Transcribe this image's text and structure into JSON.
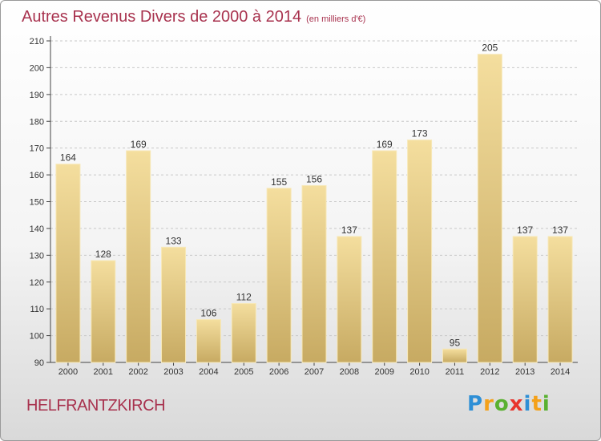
{
  "title": "Autres Revenus Divers de 2000 à 2014",
  "subtitle": "(en milliers d'€)",
  "location": "HELFRANTZKIRCH",
  "logo": {
    "letters": [
      "P",
      "r",
      "o",
      "x",
      "i",
      "t",
      "i"
    ],
    "colors": [
      "#2e8fd6",
      "#f4a11a",
      "#59b130",
      "#e8352d",
      "#2e8fd6",
      "#f4a11a",
      "#59b130"
    ]
  },
  "colors": {
    "title": "#a8324e",
    "bar_top": "#f4de9e",
    "bar_bottom": "#c7aa62",
    "grid": "#c8c8c8"
  },
  "chart_data": {
    "type": "bar",
    "categories": [
      "2000",
      "2001",
      "2002",
      "2003",
      "2004",
      "2005",
      "2006",
      "2007",
      "2008",
      "2009",
      "2010",
      "2011",
      "2012",
      "2013",
      "2014"
    ],
    "values": [
      164,
      128,
      169,
      133,
      106,
      112,
      155,
      156,
      137,
      169,
      173,
      95,
      205,
      137,
      137
    ],
    "ylim": [
      90,
      210
    ],
    "yticks": [
      90,
      100,
      110,
      120,
      130,
      140,
      150,
      160,
      170,
      180,
      190,
      200,
      210
    ],
    "grid": true,
    "show_value_labels": true
  }
}
